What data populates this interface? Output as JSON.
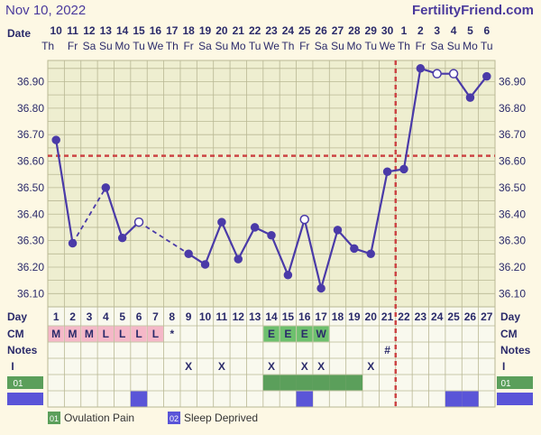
{
  "header": {
    "date": "Nov 10, 2022",
    "site": "FertilityFriend.com"
  },
  "labels": {
    "date": "Date",
    "day": "Day",
    "cm": "CM",
    "notes": "Notes",
    "intercourse": "I",
    "code_ovulation_pain": "01",
    "code_sleep_deprived": "02"
  },
  "legend": [
    {
      "code": "01",
      "label": "Ovulation Pain",
      "color": "#5b9f5b"
    },
    {
      "code": "02",
      "label": "Sleep Deprived",
      "color": "#5a55d8"
    }
  ],
  "colors": {
    "background": "#fdf8e4",
    "grid_fill": "#eeeed0",
    "grid_line": "#b9b894",
    "line": "#4a3aa8",
    "coverline": "#cc4444",
    "cm_pink": "#f5b8c8",
    "cm_green": "#6ec06e",
    "ovulation_pain": "#5b9f5b",
    "sleep_deprived": "#5a55d8",
    "text": "#2a2a6a"
  },
  "chart_data": {
    "type": "line",
    "title": "",
    "x": [
      1,
      2,
      3,
      4,
      5,
      6,
      7,
      8,
      9,
      10,
      11,
      12,
      13,
      14,
      15,
      16,
      17,
      18,
      19,
      20,
      21,
      22,
      23,
      24,
      25,
      26,
      27
    ],
    "dates": [
      "10",
      "11",
      "12",
      "13",
      "14",
      "15",
      "16",
      "17",
      "18",
      "19",
      "20",
      "21",
      "22",
      "23",
      "24",
      "25",
      "26",
      "27",
      "28",
      "29",
      "30",
      "1",
      "2",
      "3",
      "4",
      "5",
      "6"
    ],
    "weekdays": [
      "Th",
      "Fr",
      "Sa",
      "Su",
      "Mo",
      "Tu",
      "We",
      "Th",
      "Fr",
      "Sa",
      "Su",
      "Mo",
      "Tu",
      "We",
      "Th",
      "Fr",
      "Sa",
      "Su",
      "Mo",
      "Tu",
      "We",
      "Th",
      "Fr",
      "Sa",
      "Su",
      "Mo",
      "Tu"
    ],
    "temperatures": [
      36.68,
      36.29,
      null,
      36.5,
      36.31,
      36.37,
      null,
      null,
      36.25,
      36.21,
      36.37,
      36.23,
      36.35,
      36.32,
      36.17,
      36.38,
      36.12,
      36.34,
      36.27,
      36.25,
      36.56,
      36.57,
      36.95,
      36.93,
      36.93,
      36.84,
      36.92
    ],
    "open_points": [
      6,
      16,
      24,
      25
    ],
    "dashed_segments": [
      [
        2,
        4
      ],
      [
        6,
        9
      ]
    ],
    "ylim": [
      36.05,
      36.98
    ],
    "yticks": [
      36.1,
      36.2,
      36.3,
      36.4,
      36.5,
      36.6,
      36.7,
      36.8,
      36.9
    ],
    "ytick_labels": [
      "36.10",
      "36.20",
      "36.30",
      "36.40",
      "36.50",
      "36.60",
      "36.70",
      "36.80",
      "36.90"
    ],
    "coverline": 36.62,
    "ovulation_day": 22,
    "cm": [
      "M",
      "M",
      "M",
      "L",
      "L",
      "L",
      "L",
      "*",
      "",
      "",
      "",
      "",
      "",
      "E",
      "E",
      "E",
      "W",
      "",
      "",
      "",
      "",
      "",
      "",
      "",
      "",
      "",
      ""
    ],
    "cm_colors": [
      "pink",
      "pink",
      "pink",
      "pink",
      "pink",
      "pink",
      "pink",
      "",
      "",
      "",
      "",
      "",
      "",
      "green",
      "green",
      "green",
      "green",
      "",
      "",
      "",
      "",
      "",
      "",
      "",
      "",
      "",
      ""
    ],
    "notes": [
      "",
      "",
      "",
      "",
      "",
      "",
      "",
      "",
      "",
      "",
      "",
      "",
      "",
      "",
      "",
      "",
      "",
      "",
      "",
      "",
      "#",
      "",
      "",
      "",
      "",
      "",
      ""
    ],
    "intercourse": [
      "",
      "",
      "",
      "",
      "",
      "",
      "",
      "",
      "X",
      "",
      "X",
      "",
      "",
      "X",
      "",
      "X",
      "X",
      "",
      "",
      "X",
      "",
      "",
      "",
      "",
      "",
      "",
      ""
    ],
    "ovulation_pain": [
      0,
      0,
      0,
      0,
      0,
      0,
      0,
      0,
      0,
      0,
      0,
      0,
      0,
      1,
      1,
      1,
      1,
      1,
      1,
      0,
      0,
      0,
      0,
      0,
      0,
      0,
      0
    ],
    "sleep_deprived": [
      0,
      0,
      0,
      0,
      0,
      1,
      0,
      0,
      0,
      0,
      0,
      0,
      0,
      0,
      0,
      1,
      0,
      0,
      0,
      0,
      0,
      0,
      0,
      0,
      1,
      1,
      0
    ]
  }
}
